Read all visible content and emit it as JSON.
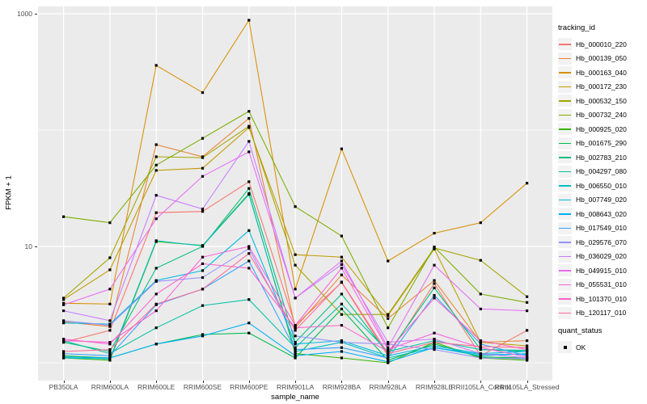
{
  "figure": {
    "panel_background": "#EBEBEB",
    "gridline_color": "#FFFFFF",
    "tick_color": "#333333",
    "tick_label_color": "#4D4D4D"
  },
  "axes": {
    "x_title": "sample_name",
    "y_title": "FPKM + 1",
    "y_tick_labels": [
      "1000",
      "10"
    ],
    "y_tick_values": [
      1000,
      10
    ]
  },
  "legend": {
    "tracking_title": "tracking_id",
    "quant_title": "quant_status",
    "quant_items": [
      {
        "label": "OK",
        "shape": "square",
        "color": "#000000"
      }
    ]
  },
  "chart_data": {
    "type": "line",
    "title": "",
    "xlabel": "sample_name",
    "ylabel": "FPKM + 1",
    "y_scale": "log10",
    "ylim": [
      0.72,
      1180
    ],
    "y_breaks_major": [
      10,
      1000
    ],
    "y_breaks_minor": [
      1,
      100
    ],
    "grid": true,
    "legend_position": "right",
    "point_shape": "square",
    "point_color": "#000000",
    "categories": [
      "PB350LA",
      "RRIM600LA",
      "RRIM600LE",
      "RRIM600SE",
      "RRIM600PE",
      "RRIM901LA",
      "RRIM928BA",
      "RRIM928LA",
      "RRIM928LE",
      "RRII105LA_Control",
      "RRII105LA_Stressed"
    ],
    "series": [
      {
        "name": "Hb_000010_220",
        "color": "#F8766D",
        "values": [
          1.5,
          1.9,
          19.5,
          20,
          36,
          2.1,
          4.9,
          1.15,
          4.8,
          1.15,
          1.9
        ]
      },
      {
        "name": "Hb_000139_050",
        "color": "#EA8331",
        "values": [
          2.25,
          2.05,
          75,
          59,
          126,
          2.0,
          5.7,
          2.4,
          5.1,
          1.5,
          1.55
        ]
      },
      {
        "name": "Hb_000163_040",
        "color": "#D89000",
        "values": [
          3.25,
          3.2,
          360,
          210,
          880,
          4.3,
          69,
          7.5,
          13,
          16,
          35
        ]
      },
      {
        "name": "Hb_000172_230",
        "color": "#C09B00",
        "values": [
          3.5,
          6.3,
          45,
          47,
          105,
          8.5,
          8.1,
          2.55,
          9.5,
          1.5,
          1.4
        ]
      },
      {
        "name": "Hb_000532_150",
        "color": "#A3A500",
        "values": [
          3.6,
          8.0,
          59,
          58,
          108,
          6.9,
          2.6,
          2.6,
          9.7,
          7.6,
          3.7
        ]
      },
      {
        "name": "Hb_000732_240",
        "color": "#7CAE00",
        "values": [
          18,
          16,
          50,
          85,
          145,
          22,
          12.3,
          2.0,
          9.9,
          3.9,
          3.3
        ]
      },
      {
        "name": "Hb_000925_020",
        "color": "#39B600",
        "values": [
          1.1,
          1.05,
          11,
          10.2,
          28.5,
          1.2,
          1.1,
          1.0,
          1.5,
          1.1,
          1.05
        ]
      },
      {
        "name": "Hb_001675_290",
        "color": "#00BB4E",
        "values": [
          1.15,
          1.1,
          1.45,
          1.75,
          1.8,
          1.1,
          2.9,
          1.05,
          1.45,
          1.12,
          1.1
        ]
      },
      {
        "name": "Hb_002783_210",
        "color": "#00BF7D",
        "values": [
          1.5,
          1.25,
          6.5,
          10,
          31.5,
          1.5,
          3.9,
          1.2,
          4.4,
          1.3,
          1.25
        ]
      },
      {
        "name": "Hb_004297_080",
        "color": "#00C1A3",
        "values": [
          1.55,
          1.2,
          2.0,
          3.1,
          3.5,
          1.35,
          3.2,
          1.25,
          1.55,
          1.3,
          1.28
        ]
      },
      {
        "name": "Hb_006550_010",
        "color": "#00BFC4",
        "values": [
          1.1,
          1.08,
          11.2,
          10.1,
          28,
          1.25,
          1.5,
          1.1,
          1.35,
          1.15,
          1.2
        ]
      },
      {
        "name": "Hb_007749_020",
        "color": "#00BAE0",
        "values": [
          2.2,
          2.15,
          5.1,
          6.2,
          13.7,
          1.45,
          1.55,
          1.15,
          1.4,
          1.2,
          1.25
        ]
      },
      {
        "name": "Hb_008643_020",
        "color": "#00B0F6",
        "values": [
          1.12,
          1.1,
          1.45,
          1.7,
          2.2,
          1.15,
          1.25,
          1.02,
          1.35,
          1.18,
          1.18
        ]
      },
      {
        "name": "Hb_017549_010",
        "color": "#35A2FF",
        "values": [
          1.2,
          1.15,
          3.15,
          4.3,
          7.5,
          1.3,
          1.35,
          1.1,
          3.8,
          1.45,
          1.15
        ]
      },
      {
        "name": "Hb_029576_070",
        "color": "#9590FF",
        "values": [
          2.3,
          2.1,
          5.0,
          5.4,
          9.6,
          1.7,
          1.5,
          1.45,
          1.3,
          1.1,
          1.08
        ]
      },
      {
        "name": "Hb_036029_020",
        "color": "#C77CFF",
        "values": [
          2.8,
          2.3,
          27.5,
          21,
          80,
          3.6,
          7.0,
          1.5,
          1.6,
          1.2,
          1.1
        ]
      },
      {
        "name": "Hb_049915_010",
        "color": "#E76BF3",
        "values": [
          3.15,
          4.3,
          17.3,
          40,
          65,
          3.6,
          7.5,
          1.35,
          6.9,
          2.9,
          2.8
        ]
      },
      {
        "name": "Hb_055531_010",
        "color": "#FA62DB",
        "values": [
          1.55,
          1.5,
          2.8,
          8.1,
          10,
          2.1,
          6.5,
          1.3,
          1.8,
          1.35,
          1.12
        ]
      },
      {
        "name": "Hb_101370_010",
        "color": "#FF61CC",
        "values": [
          1.6,
          1.45,
          3.9,
          7.1,
          6.5,
          2.0,
          2.1,
          1.25,
          3.6,
          1.55,
          1.3
        ]
      },
      {
        "name": "Hb_120117_010",
        "color": "#FF6A98",
        "values": [
          1.25,
          1.3,
          3.2,
          4.3,
          8.7,
          1.9,
          4.95,
          1.2,
          1.5,
          1.38,
          1.35
        ]
      }
    ]
  }
}
